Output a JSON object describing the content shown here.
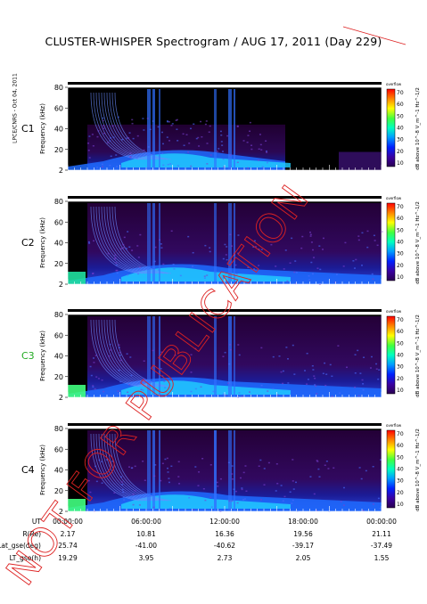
{
  "title": "CLUSTER-WHISPER Spectrogram / AUG 17, 2011 (Day 229)",
  "side_label": "LPCE/CNRS - Oct 04, 2011",
  "watermark": "NOT FOR PUBLICATION",
  "colors": {
    "background": "#000000",
    "watermark": "#dd2222",
    "c3_label": "#22aa22"
  },
  "colorbar": {
    "label": "dB above 10^-8 V_m^-1 Hz^-1/2",
    "over_label": "overflow",
    "ticks": [
      "70",
      "60",
      "50",
      "40",
      "30",
      "20",
      "10"
    ]
  },
  "chart_data": [
    {
      "type": "heatmap",
      "spacecraft": "C1",
      "ylabel": "Frequency (kHz)",
      "yticks": [
        "80",
        "60",
        "40",
        "20",
        "2"
      ],
      "ylim": [
        2,
        80
      ],
      "xlim": [
        "00:00:00",
        "24:00:00"
      ],
      "zlim": [
        10,
        70
      ],
      "label_color": "#000000"
    },
    {
      "type": "heatmap",
      "spacecraft": "C2",
      "ylabel": "Frequency (kHz)",
      "yticks": [
        "80",
        "60",
        "40",
        "20",
        "2"
      ],
      "ylim": [
        2,
        80
      ],
      "xlim": [
        "00:00:00",
        "24:00:00"
      ],
      "zlim": [
        10,
        70
      ],
      "label_color": "#000000"
    },
    {
      "type": "heatmap",
      "spacecraft": "C3",
      "ylabel": "Frequency (kHz)",
      "yticks": [
        "80",
        "60",
        "40",
        "20",
        "2"
      ],
      "ylim": [
        2,
        80
      ],
      "xlim": [
        "00:00:00",
        "24:00:00"
      ],
      "zlim": [
        10,
        70
      ],
      "label_color": "#22aa22"
    },
    {
      "type": "heatmap",
      "spacecraft": "C4",
      "ylabel": "Frequency (kHz)",
      "yticks": [
        "80",
        "60",
        "40",
        "20",
        "2"
      ],
      "ylim": [
        2,
        80
      ],
      "xlim": [
        "00:00:00",
        "24:00:00"
      ],
      "zlim": [
        10,
        70
      ],
      "label_color": "#000000"
    }
  ],
  "ephemeris": {
    "labels": [
      "UT",
      "R(Re)",
      "Lat_gse(deg)",
      "LT_gse(h)"
    ],
    "columns": [
      {
        "ut": "00:00:00",
        "r": "2.17",
        "lat": "25.74",
        "lt": "19.29"
      },
      {
        "ut": "06:00:00",
        "r": "10.81",
        "lat": "-41.00",
        "lt": "3.95"
      },
      {
        "ut": "12:00:00",
        "r": "16.36",
        "lat": "-40.62",
        "lt": "2.73"
      },
      {
        "ut": "18:00:00",
        "r": "19.56",
        "lat": "-39.17",
        "lt": "2.05"
      },
      {
        "ut": "00:00:00",
        "r": "21.11",
        "lat": "-37.49",
        "lt": "1.55"
      }
    ]
  }
}
